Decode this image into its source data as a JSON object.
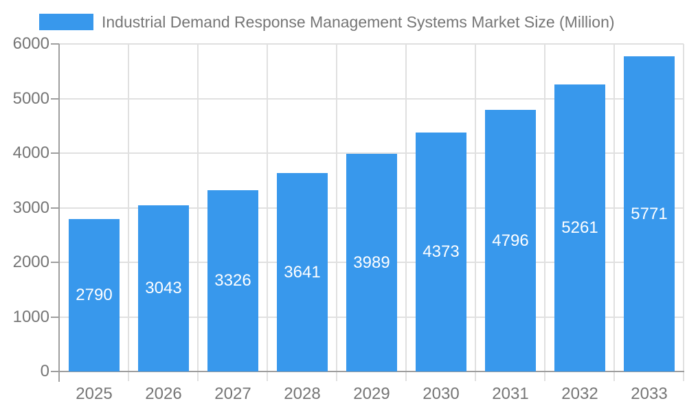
{
  "chart_data": {
    "type": "bar",
    "title": "Industrial Demand Response Management Systems Market Size (Million)",
    "categories": [
      "2025",
      "2026",
      "2027",
      "2028",
      "2029",
      "2030",
      "2031",
      "2032",
      "2033"
    ],
    "series": [
      {
        "name": "Industrial Demand Response Management Systems Market Size (Million)",
        "values": [
          2790,
          3043,
          3326,
          3641,
          3989,
          4373,
          4796,
          5261,
          5771
        ]
      }
    ],
    "y_ticks": [
      0,
      1000,
      2000,
      3000,
      4000,
      5000,
      6000
    ],
    "ylim": [
      0,
      6000
    ],
    "xlabel": "",
    "ylabel": "",
    "grid": true,
    "bar_value_labels": true,
    "legend_position": "top-left"
  },
  "colors": {
    "bar": "#3898ec",
    "axis_text": "#757575",
    "axis_line": "#9e9e9e",
    "gridline": "#e0e0e0",
    "bar_label_text": "#ffffff",
    "background": "#ffffff"
  }
}
